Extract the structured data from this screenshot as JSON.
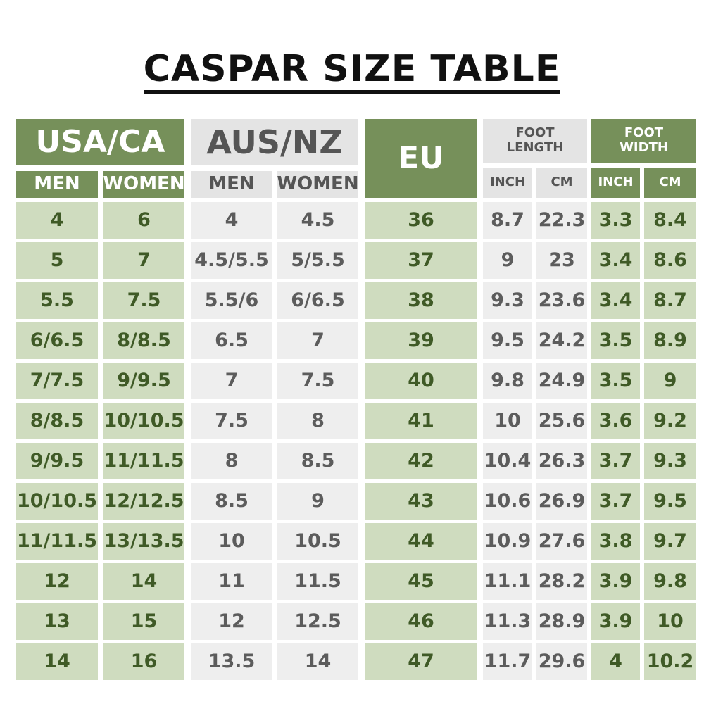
{
  "title": "CASPAR SIZE TABLE",
  "headers": {
    "usa": "USA/CA",
    "aus": "AUS/NZ",
    "eu": "EU",
    "foot_length": "FOOT LENGTH",
    "foot_width": "FOOT WIDTH",
    "men": "MEN",
    "women": "WOMEN",
    "inch": "INCH",
    "cm": "CM"
  },
  "columns": [
    "usa_men",
    "usa_women",
    "aus_men",
    "aus_women",
    "eu",
    "length_inch",
    "length_cm",
    "width_inch",
    "width_cm"
  ],
  "rows": [
    [
      "4",
      "6",
      "4",
      "4.5",
      "36",
      "8.7",
      "22.3",
      "3.3",
      "8.4"
    ],
    [
      "5",
      "7",
      "4.5/5.5",
      "5/5.5",
      "37",
      "9",
      "23",
      "3.4",
      "8.6"
    ],
    [
      "5.5",
      "7.5",
      "5.5/6",
      "6/6.5",
      "38",
      "9.3",
      "23.6",
      "3.4",
      "8.7"
    ],
    [
      "6/6.5",
      "8/8.5",
      "6.5",
      "7",
      "39",
      "9.5",
      "24.2",
      "3.5",
      "8.9"
    ],
    [
      "7/7.5",
      "9/9.5",
      "7",
      "7.5",
      "40",
      "9.8",
      "24.9",
      "3.5",
      "9"
    ],
    [
      "8/8.5",
      "10/10.5",
      "7.5",
      "8",
      "41",
      "10",
      "25.6",
      "3.6",
      "9.2"
    ],
    [
      "9/9.5",
      "11/11.5",
      "8",
      "8.5",
      "42",
      "10.4",
      "26.3",
      "3.7",
      "9.3"
    ],
    [
      "10/10.5",
      "12/12.5",
      "8.5",
      "9",
      "43",
      "10.6",
      "26.9",
      "3.7",
      "9.5"
    ],
    [
      "11/11.5",
      "13/13.5",
      "10",
      "10.5",
      "44",
      "10.9",
      "27.6",
      "3.8",
      "9.7"
    ],
    [
      "12",
      "14",
      "11",
      "11.5",
      "45",
      "11.1",
      "28.2",
      "3.9",
      "9.8"
    ],
    [
      "13",
      "15",
      "12",
      "12.5",
      "46",
      "11.3",
      "28.9",
      "3.9",
      "10"
    ],
    [
      "14",
      "16",
      "13.5",
      "14",
      "47",
      "11.7",
      "29.6",
      "4",
      "10.2"
    ]
  ],
  "colors": {
    "green_header": "#76905a",
    "green_cell": "#cfdcbf",
    "green_text": "#3f5a26",
    "gray_header": "#e4e4e4",
    "gray_cell": "#eeeeee",
    "gray_text": "#5c5c5c"
  }
}
